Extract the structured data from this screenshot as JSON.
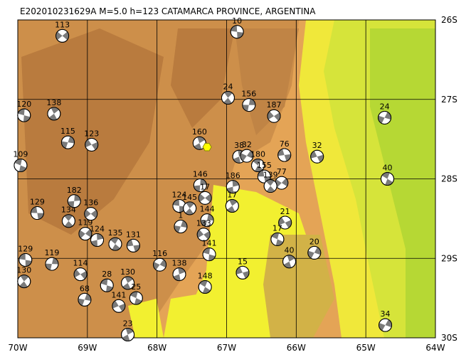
{
  "title": "E202010231629A M=5.0 h=123 CATAMARCA PROVINCE, ARGENTINA",
  "xlim": [
    -70,
    -64
  ],
  "ylim": [
    -30,
    -26
  ],
  "xticks": [
    {
      "value": -70,
      "label": "70W"
    },
    {
      "value": -69,
      "label": "69W"
    },
    {
      "value": -68,
      "label": "68W"
    },
    {
      "value": -67,
      "label": "67W"
    },
    {
      "value": -66,
      "label": "66W"
    },
    {
      "value": -65,
      "label": "65W"
    },
    {
      "value": -64,
      "label": "64W"
    }
  ],
  "yticks": [
    {
      "value": -26,
      "label": "26S"
    },
    {
      "value": -27,
      "label": "27S"
    },
    {
      "value": -28,
      "label": "28S"
    },
    {
      "value": -29,
      "label": "29S"
    },
    {
      "value": -30,
      "label": "30S"
    }
  ],
  "epicenter": {
    "lon": -67.28,
    "lat": -27.6
  },
  "events": [
    {
      "lon": -69.36,
      "lat": -26.2,
      "label": "113"
    },
    {
      "lon": -66.85,
      "lat": -26.15,
      "label": "10"
    },
    {
      "lon": -66.98,
      "lat": -26.98,
      "label": "24"
    },
    {
      "lon": -66.68,
      "lat": -27.07,
      "label": "156"
    },
    {
      "lon": -66.32,
      "lat": -27.21,
      "label": "187"
    },
    {
      "lon": -69.91,
      "lat": -27.2,
      "label": "120"
    },
    {
      "lon": -69.48,
      "lat": -27.18,
      "label": "138"
    },
    {
      "lon": -69.28,
      "lat": -27.54,
      "label": "115"
    },
    {
      "lon": -68.94,
      "lat": -27.57,
      "label": "123"
    },
    {
      "lon": -69.96,
      "lat": -27.83,
      "label": "109"
    },
    {
      "lon": -67.39,
      "lat": -27.55,
      "label": "160"
    },
    {
      "lon": -64.73,
      "lat": -27.23,
      "label": "24"
    },
    {
      "lon": -65.7,
      "lat": -27.72,
      "label": "32"
    },
    {
      "lon": -64.69,
      "lat": -28.0,
      "label": "40"
    },
    {
      "lon": -66.82,
      "lat": -27.72,
      "label": "38"
    },
    {
      "lon": -66.71,
      "lat": -27.71,
      "label": "32"
    },
    {
      "lon": -66.17,
      "lat": -27.7,
      "label": "76"
    },
    {
      "lon": -66.55,
      "lat": -27.83,
      "label": "180"
    },
    {
      "lon": -66.91,
      "lat": -28.1,
      "label": "186"
    },
    {
      "lon": -66.21,
      "lat": -28.05,
      "label": "77"
    },
    {
      "lon": -66.46,
      "lat": -27.97,
      "label": "155"
    },
    {
      "lon": -66.37,
      "lat": -28.09,
      "label": "139"
    },
    {
      "lon": -67.38,
      "lat": -28.08,
      "label": "146"
    },
    {
      "lon": -67.31,
      "lat": -28.24,
      "label": "17"
    },
    {
      "lon": -67.68,
      "lat": -28.34,
      "label": "124"
    },
    {
      "lon": -67.53,
      "lat": -28.37,
      "label": "145"
    },
    {
      "lon": -67.28,
      "lat": -28.52,
      "label": "144"
    },
    {
      "lon": -67.33,
      "lat": -28.7,
      "label": "133"
    },
    {
      "lon": -67.25,
      "lat": -28.95,
      "label": "141"
    },
    {
      "lon": -66.92,
      "lat": -28.34,
      "label": "17"
    },
    {
      "lon": -67.66,
      "lat": -28.6,
      "label": "1"
    },
    {
      "lon": -66.16,
      "lat": -28.55,
      "label": "21"
    },
    {
      "lon": -66.27,
      "lat": -28.76,
      "label": "17"
    },
    {
      "lon": -66.1,
      "lat": -29.04,
      "label": "40"
    },
    {
      "lon": -65.74,
      "lat": -28.93,
      "label": "20"
    },
    {
      "lon": -66.77,
      "lat": -29.18,
      "label": "15"
    },
    {
      "lon": -67.31,
      "lat": -29.36,
      "label": "148"
    },
    {
      "lon": -67.68,
      "lat": -29.2,
      "label": "138"
    },
    {
      "lon": -67.96,
      "lat": -29.08,
      "label": "116"
    },
    {
      "lon": -68.34,
      "lat": -28.84,
      "label": "131"
    },
    {
      "lon": -68.6,
      "lat": -28.82,
      "label": "135"
    },
    {
      "lon": -68.86,
      "lat": -28.77,
      "label": "124"
    },
    {
      "lon": -69.03,
      "lat": -28.69,
      "label": "119"
    },
    {
      "lon": -69.72,
      "lat": -28.43,
      "label": "129"
    },
    {
      "lon": -69.27,
      "lat": -28.53,
      "label": "134"
    },
    {
      "lon": -69.19,
      "lat": -28.28,
      "label": "182"
    },
    {
      "lon": -68.95,
      "lat": -28.44,
      "label": "136"
    },
    {
      "lon": -69.89,
      "lat": -29.02,
      "label": "129"
    },
    {
      "lon": -69.91,
      "lat": -29.29,
      "label": "130"
    },
    {
      "lon": -69.51,
      "lat": -29.07,
      "label": "119"
    },
    {
      "lon": -69.1,
      "lat": -29.2,
      "label": "114"
    },
    {
      "lon": -68.72,
      "lat": -29.34,
      "label": "28"
    },
    {
      "lon": -68.42,
      "lat": -29.31,
      "label": "130"
    },
    {
      "lon": -69.04,
      "lat": -29.52,
      "label": "68"
    },
    {
      "lon": -68.55,
      "lat": -29.6,
      "label": "141"
    },
    {
      "lon": -68.3,
      "lat": -29.5,
      "label": "25"
    },
    {
      "lon": -68.42,
      "lat": -29.96,
      "label": "23"
    },
    {
      "lon": -64.72,
      "lat": -29.84,
      "label": "34"
    }
  ]
}
